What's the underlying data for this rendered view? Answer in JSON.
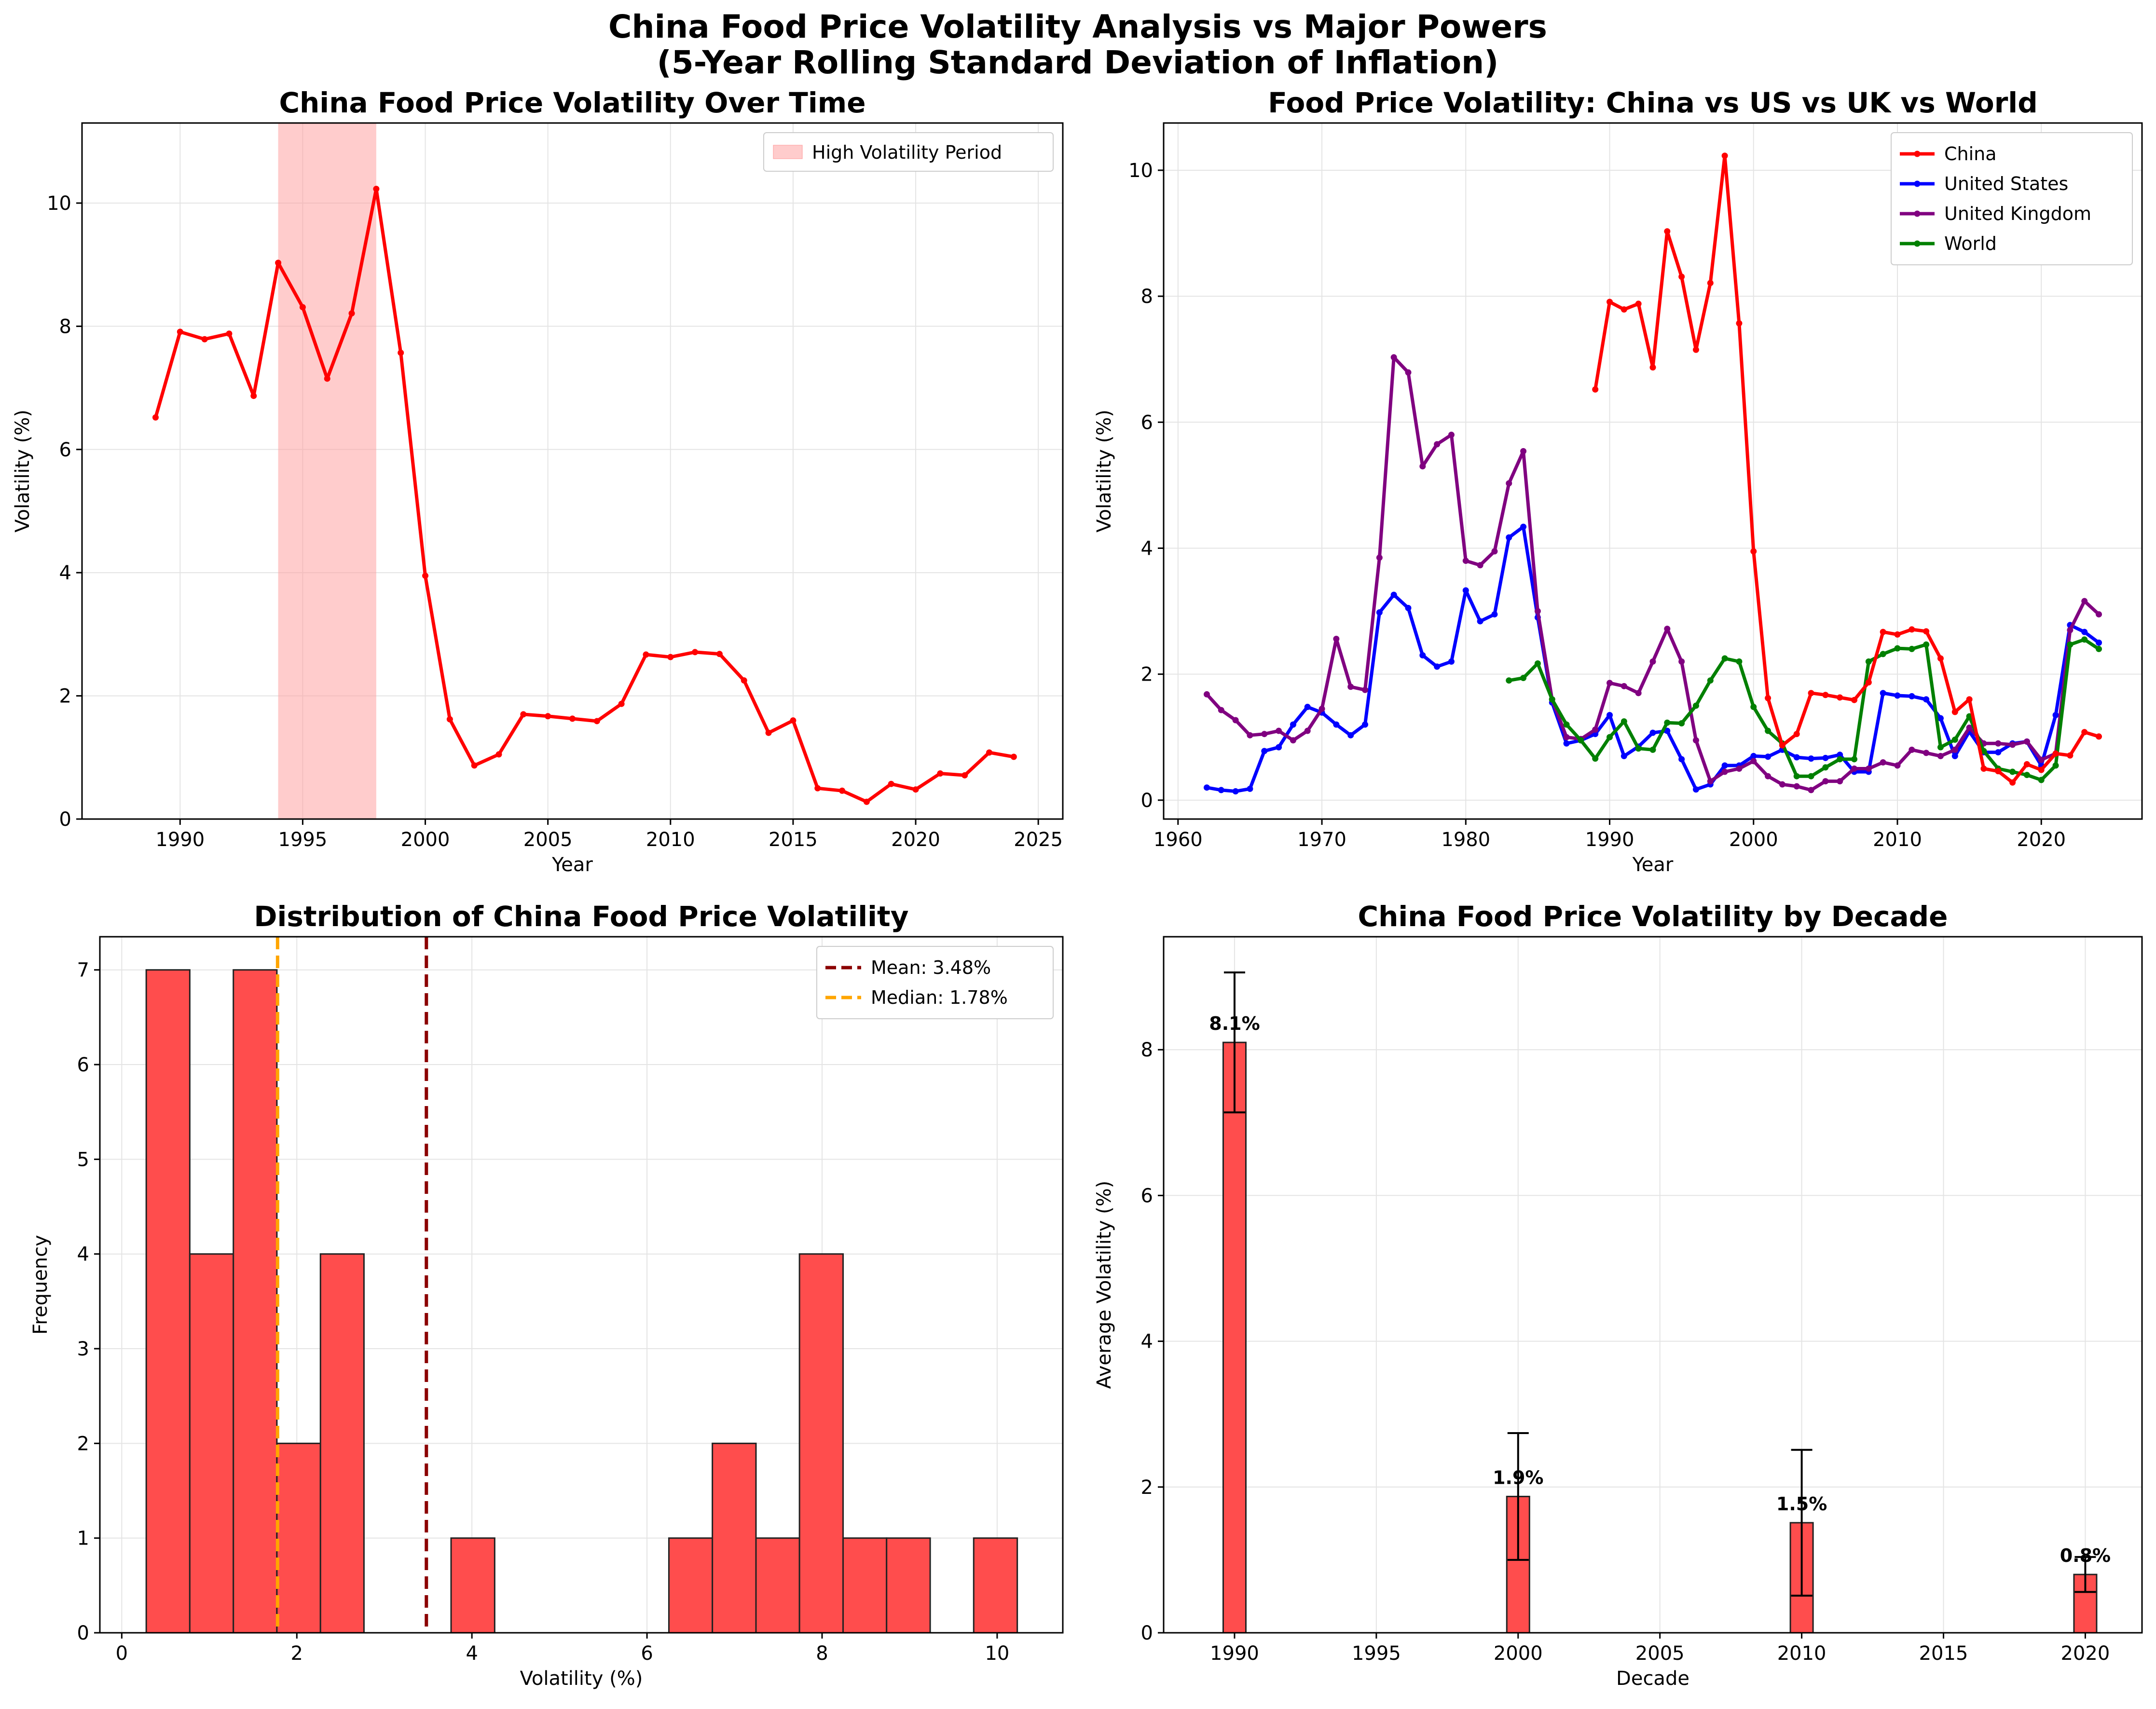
{
  "figure": {
    "title_line1": "China Food Price Volatility Analysis vs Major Powers",
    "title_line2": "(5-Year Rolling Standard Deviation of Inflation)"
  },
  "colors": {
    "china": "#ff0000",
    "us": "#0000ff",
    "uk": "#800080",
    "world": "#008000",
    "shade": "#ff9999",
    "hist": "#ff4d4d",
    "mean": "#8b0000",
    "median": "#ffa500"
  },
  "chart_data": [
    {
      "type": "line",
      "title": "China Food Price Volatility Over Time",
      "xlabel": "Year",
      "ylabel": "Volatility (%)",
      "xlim": [
        1986,
        2026
      ],
      "ylim": [
        0,
        11.3
      ],
      "xticks": [
        1990,
        1995,
        2000,
        2005,
        2010,
        2015,
        2020,
        2025
      ],
      "yticks": [
        0,
        2,
        4,
        6,
        8,
        10
      ],
      "grid": true,
      "legend_position": "top-right",
      "shaded_region": {
        "label": "High Volatility Period",
        "x": [
          1994,
          1998
        ]
      },
      "series": [
        {
          "x": [
            1989,
            1990,
            1991,
            1992,
            1993,
            1994,
            1995,
            1996,
            1997,
            1998,
            1999,
            2000,
            2001,
            2002,
            2003,
            2004,
            2005,
            2006,
            2007,
            2008,
            2009,
            2010,
            2011,
            2012,
            2013,
            2014,
            2015,
            2016,
            2017,
            2018,
            2019,
            2020,
            2021,
            2022,
            2023,
            2024
          ],
          "y": [
            6.52,
            7.91,
            7.79,
            7.88,
            6.87,
            9.03,
            8.31,
            7.15,
            8.21,
            10.23,
            7.57,
            3.95,
            1.62,
            0.87,
            1.05,
            1.7,
            1.67,
            1.63,
            1.59,
            1.87,
            2.67,
            2.63,
            2.71,
            2.68,
            2.25,
            1.4,
            1.6,
            0.5,
            0.46,
            0.28,
            0.57,
            0.48,
            0.74,
            0.71,
            1.08,
            1.01
          ]
        }
      ]
    },
    {
      "type": "line",
      "title": "Food Price Volatility: China vs US vs UK vs World",
      "xlabel": "Year",
      "ylabel": "Volatility (%)",
      "xlim": [
        1959,
        2027
      ],
      "ylim": [
        -0.3,
        10.75
      ],
      "xticks": [
        1960,
        1970,
        1980,
        1990,
        2000,
        2010,
        2020
      ],
      "yticks": [
        0,
        2,
        4,
        6,
        8,
        10
      ],
      "grid": true,
      "legend_position": "top-right",
      "series": [
        {
          "name": "China",
          "x": [
            1989,
            1990,
            1991,
            1992,
            1993,
            1994,
            1995,
            1996,
            1997,
            1998,
            1999,
            2000,
            2001,
            2002,
            2003,
            2004,
            2005,
            2006,
            2007,
            2008,
            2009,
            2010,
            2011,
            2012,
            2013,
            2014,
            2015,
            2016,
            2017,
            2018,
            2019,
            2020,
            2021,
            2022,
            2023,
            2024
          ],
          "y": [
            6.52,
            7.91,
            7.79,
            7.88,
            6.87,
            9.03,
            8.31,
            7.15,
            8.21,
            10.23,
            7.57,
            3.95,
            1.62,
            0.87,
            1.05,
            1.7,
            1.67,
            1.63,
            1.59,
            1.87,
            2.67,
            2.63,
            2.71,
            2.68,
            2.25,
            1.4,
            1.6,
            0.5,
            0.46,
            0.28,
            0.57,
            0.48,
            0.74,
            0.71,
            1.08,
            1.01
          ]
        },
        {
          "name": "United States",
          "x": [
            1962,
            1963,
            1964,
            1965,
            1966,
            1967,
            1968,
            1969,
            1970,
            1971,
            1972,
            1973,
            1974,
            1975,
            1976,
            1977,
            1978,
            1979,
            1980,
            1981,
            1982,
            1983,
            1984,
            1985,
            1986,
            1987,
            1988,
            1989,
            1990,
            1991,
            1992,
            1993,
            1994,
            1995,
            1996,
            1997,
            1998,
            1999,
            2000,
            2001,
            2002,
            2003,
            2004,
            2005,
            2006,
            2007,
            2008,
            2009,
            2010,
            2011,
            2012,
            2013,
            2014,
            2015,
            2016,
            2017,
            2018,
            2019,
            2020,
            2021,
            2022,
            2023,
            2024
          ],
          "y": [
            0.2,
            0.16,
            0.14,
            0.18,
            0.78,
            0.84,
            1.2,
            1.48,
            1.39,
            1.2,
            1.03,
            1.2,
            2.98,
            3.26,
            3.05,
            2.3,
            2.12,
            2.2,
            3.33,
            2.84,
            2.95,
            4.17,
            4.34,
            2.9,
            1.55,
            0.9,
            0.95,
            1.05,
            1.35,
            0.7,
            0.85,
            1.07,
            1.1,
            0.65,
            0.17,
            0.25,
            0.55,
            0.55,
            0.7,
            0.69,
            0.8,
            0.68,
            0.66,
            0.67,
            0.72,
            0.45,
            0.45,
            1.7,
            1.66,
            1.65,
            1.6,
            1.3,
            0.7,
            1.09,
            0.76,
            0.76,
            0.9,
            0.93,
            0.55,
            1.35,
            2.78,
            2.67,
            2.5
          ]
        },
        {
          "name": "United Kingdom",
          "x": [
            1962,
            1963,
            1964,
            1965,
            1966,
            1967,
            1968,
            1969,
            1970,
            1971,
            1972,
            1973,
            1974,
            1975,
            1976,
            1977,
            1978,
            1979,
            1980,
            1981,
            1982,
            1983,
            1984,
            1985,
            1986,
            1987,
            1988,
            1989,
            1990,
            1991,
            1992,
            1993,
            1994,
            1995,
            1996,
            1997,
            1998,
            1999,
            2000,
            2001,
            2002,
            2003,
            2004,
            2005,
            2006,
            2007,
            2008,
            2009,
            2010,
            2011,
            2012,
            2013,
            2014,
            2015,
            2016,
            2017,
            2018,
            2019,
            2020,
            2021,
            2022,
            2023,
            2024
          ],
          "y": [
            1.68,
            1.43,
            1.27,
            1.03,
            1.05,
            1.1,
            0.95,
            1.1,
            1.45,
            2.56,
            1.8,
            1.75,
            3.85,
            7.03,
            6.79,
            5.3,
            5.65,
            5.8,
            3.8,
            3.73,
            3.95,
            5.03,
            5.54,
            3.0,
            1.6,
            1.0,
            0.97,
            1.12,
            1.86,
            1.81,
            1.7,
            2.2,
            2.72,
            2.2,
            0.95,
            0.3,
            0.45,
            0.5,
            0.62,
            0.38,
            0.25,
            0.22,
            0.16,
            0.3,
            0.3,
            0.5,
            0.5,
            0.6,
            0.55,
            0.8,
            0.75,
            0.7,
            0.8,
            1.15,
            0.9,
            0.9,
            0.88,
            0.93,
            0.64,
            0.74,
            2.7,
            3.16,
            2.95
          ]
        },
        {
          "name": "World",
          "x": [
            1983,
            1984,
            1985,
            1986,
            1987,
            1988,
            1989,
            1990,
            1991,
            1992,
            1993,
            1994,
            1995,
            1996,
            1997,
            1998,
            1999,
            2000,
            2001,
            2002,
            2003,
            2004,
            2005,
            2006,
            2007,
            2008,
            2009,
            2010,
            2011,
            2012,
            2013,
            2014,
            2015,
            2016,
            2017,
            2018,
            2019,
            2020,
            2021,
            2022,
            2023,
            2024
          ],
          "y": [
            1.9,
            1.94,
            2.17,
            1.6,
            1.2,
            0.95,
            0.66,
            1.0,
            1.25,
            0.82,
            0.8,
            1.23,
            1.22,
            1.5,
            1.9,
            2.25,
            2.2,
            1.48,
            1.1,
            0.9,
            0.38,
            0.38,
            0.52,
            0.65,
            0.65,
            2.2,
            2.32,
            2.41,
            2.4,
            2.47,
            0.84,
            0.96,
            1.33,
            0.78,
            0.5,
            0.45,
            0.4,
            0.32,
            0.55,
            2.47,
            2.55,
            2.4
          ]
        }
      ]
    },
    {
      "type": "bar",
      "subtype": "histogram",
      "title": "Distribution of China Food Price Volatility",
      "xlabel": "Volatility (%)",
      "ylabel": "Frequency",
      "xlim": [
        -0.25,
        10.75
      ],
      "ylim": [
        0,
        7.35
      ],
      "xticks": [
        0,
        2,
        4,
        6,
        8,
        10
      ],
      "yticks": [
        0,
        1,
        2,
        3,
        4,
        5,
        6,
        7
      ],
      "grid": true,
      "legend_position": "top-right",
      "bin_edges": [
        0.28,
        0.777,
        1.275,
        1.772,
        2.27,
        2.767,
        3.265,
        3.762,
        4.26,
        4.757,
        5.255,
        5.752,
        6.25,
        6.747,
        7.245,
        7.742,
        8.24,
        8.737,
        9.235,
        9.732,
        10.23
      ],
      "counts": [
        7,
        4,
        7,
        2,
        4,
        0,
        0,
        1,
        0,
        0,
        0,
        0,
        1,
        2,
        1,
        4,
        1,
        1,
        0,
        1
      ],
      "mean": {
        "value": 3.48,
        "label": "Mean: 3.48%"
      },
      "median": {
        "value": 1.78,
        "label": "Median: 1.78%"
      }
    },
    {
      "type": "bar",
      "title": "China Food Price Volatility by Decade",
      "xlabel": "Decade",
      "ylabel": "Average Volatility (%)",
      "xlim": [
        1987.5,
        2022
      ],
      "ylim": [
        0,
        9.55
      ],
      "xticks": [
        1990,
        1995,
        2000,
        2005,
        2010,
        2015,
        2020
      ],
      "yticks": [
        0,
        2,
        4,
        6,
        8
      ],
      "grid": true,
      "categories": [
        1990,
        2000,
        2010,
        2020
      ],
      "values": [
        8.1,
        1.87,
        1.51,
        0.8
      ],
      "errors": [
        0.96,
        0.87,
        1.0,
        0.24
      ],
      "labels": [
        "8.1%",
        "1.9%",
        "1.5%",
        "0.8%"
      ]
    }
  ]
}
